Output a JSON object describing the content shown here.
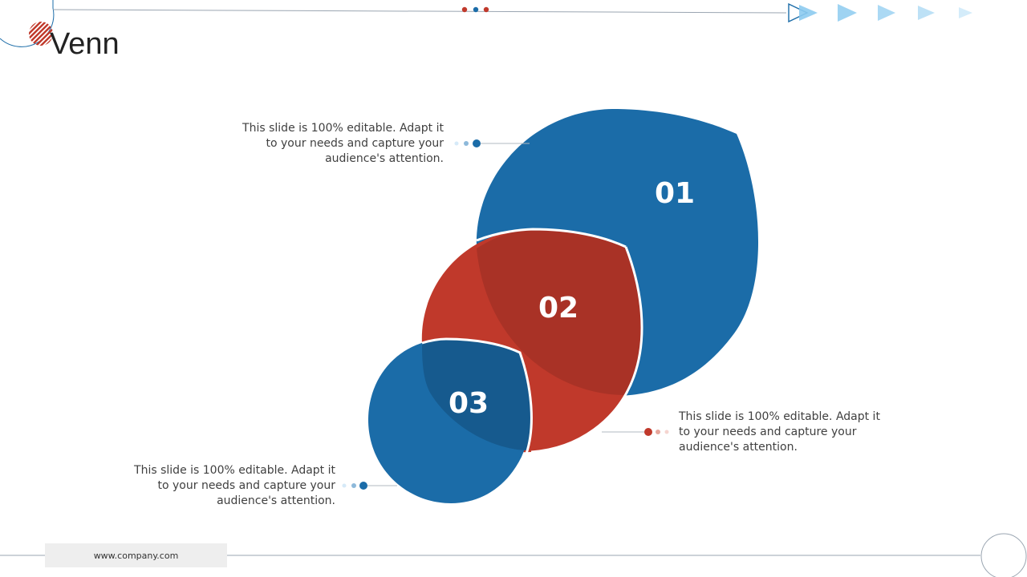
{
  "slide": {
    "title": "Venn",
    "footer_url": "www.company.com"
  },
  "venn": {
    "items": [
      {
        "id": "01",
        "label": "01",
        "color": "#1B6CA8",
        "description": "This slide is 100% editable. Adapt it to your needs and capture your audience's attention."
      },
      {
        "id": "02",
        "label": "02",
        "color": "#C0392B",
        "description": "This slide is 100% editable. Adapt it to your needs and capture your audience's attention."
      },
      {
        "id": "03",
        "label": "03",
        "color": "#1B6CA8",
        "description": "This slide is 100% editable. Adapt it to your needs and capture your audience's attention."
      }
    ]
  },
  "colors": {
    "blue": "#1B6CA8",
    "red": "#C0392B",
    "dark_red": "#A93226",
    "dark_blue": "#165A8E",
    "light_blue": "#BFE3F7"
  }
}
